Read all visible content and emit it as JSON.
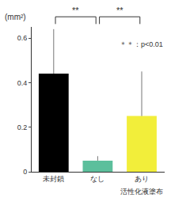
{
  "chart_data": {
    "type": "bar",
    "ylabel": "(mm²)",
    "xlabel": "活性化液塗布",
    "categories": [
      "未封鎖",
      "なし",
      "あり"
    ],
    "values": [
      0.44,
      0.05,
      0.25
    ],
    "errors": [
      0.2,
      0.02,
      0.2
    ],
    "colors": [
      "#000000",
      "#5cbf9c",
      "#f2ee3a"
    ],
    "ylim": [
      0,
      0.65
    ],
    "yticks": [
      0,
      0.2,
      0.4,
      0.6
    ],
    "grid": false,
    "comparisons": [
      {
        "pair": [
          "未封鎖",
          "なし"
        ],
        "label": "**"
      },
      {
        "pair": [
          "なし",
          "あり"
        ],
        "label": "**"
      }
    ],
    "note": "＊＊：p<0.01"
  }
}
